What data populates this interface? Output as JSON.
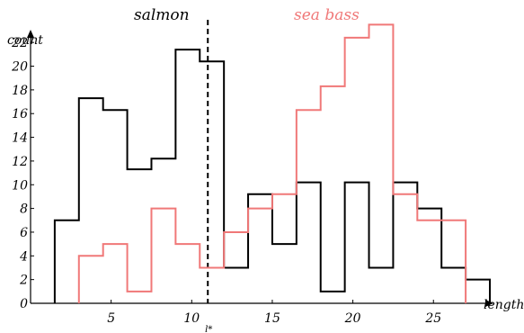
{
  "chart_data": {
    "type": "histogram",
    "xlabel": "length",
    "ylabel": "count",
    "xlim": [
      0,
      28.5
    ],
    "ylim": [
      0,
      23
    ],
    "xticks": [
      5,
      10,
      15,
      20,
      25
    ],
    "yticks": [
      0,
      2,
      4,
      6,
      8,
      10,
      12,
      14,
      16,
      18,
      20,
      22
    ],
    "threshold": {
      "x": 11,
      "label": "l*"
    },
    "series": [
      {
        "name": "salmon",
        "color": "#000000",
        "bins": [
          {
            "x0": 1.5,
            "x1": 3,
            "count": 7
          },
          {
            "x0": 3,
            "x1": 4.5,
            "count": 17.3
          },
          {
            "x0": 4.5,
            "x1": 6,
            "count": 16.3
          },
          {
            "x0": 6,
            "x1": 7.5,
            "count": 11.3
          },
          {
            "x0": 7.5,
            "x1": 9,
            "count": 12.2
          },
          {
            "x0": 9,
            "x1": 10.5,
            "count": 21.4
          },
          {
            "x0": 10.5,
            "x1": 12,
            "count": 20.4
          },
          {
            "x0": 12,
            "x1": 13.5,
            "count": 3
          },
          {
            "x0": 13.5,
            "x1": 15,
            "count": 9.2
          },
          {
            "x0": 15,
            "x1": 16.5,
            "count": 5
          },
          {
            "x0": 16.5,
            "x1": 18,
            "count": 10.2
          },
          {
            "x0": 18,
            "x1": 19.5,
            "count": 1
          },
          {
            "x0": 19.5,
            "x1": 21,
            "count": 10.2
          },
          {
            "x0": 21,
            "x1": 22.5,
            "count": 3
          },
          {
            "x0": 22.5,
            "x1": 24,
            "count": 10.2
          },
          {
            "x0": 24,
            "x1": 25.5,
            "count": 8
          },
          {
            "x0": 25.5,
            "x1": 27,
            "count": 3
          },
          {
            "x0": 27,
            "x1": 28.5,
            "count": 2
          }
        ]
      },
      {
        "name": "sea bass",
        "color": "#f07878",
        "bins": [
          {
            "x0": 3,
            "x1": 4.5,
            "count": 4
          },
          {
            "x0": 4.5,
            "x1": 6,
            "count": 5
          },
          {
            "x0": 6,
            "x1": 7.5,
            "count": 1
          },
          {
            "x0": 7.5,
            "x1": 9,
            "count": 8
          },
          {
            "x0": 9,
            "x1": 10.5,
            "count": 5
          },
          {
            "x0": 10.5,
            "x1": 12,
            "count": 3
          },
          {
            "x0": 12,
            "x1": 13.5,
            "count": 6
          },
          {
            "x0": 13.5,
            "x1": 15,
            "count": 8
          },
          {
            "x0": 15,
            "x1": 16.5,
            "count": 9.2
          },
          {
            "x0": 16.5,
            "x1": 18,
            "count": 16.3
          },
          {
            "x0": 18,
            "x1": 19.5,
            "count": 18.3
          },
          {
            "x0": 19.5,
            "x1": 21,
            "count": 22.4
          },
          {
            "x0": 21,
            "x1": 22.5,
            "count": 23.5
          },
          {
            "x0": 22.5,
            "x1": 24,
            "count": 9.2
          },
          {
            "x0": 24,
            "x1": 25.5,
            "count": 7
          },
          {
            "x0": 25.5,
            "x1": 27,
            "count": 7
          }
        ]
      }
    ]
  }
}
